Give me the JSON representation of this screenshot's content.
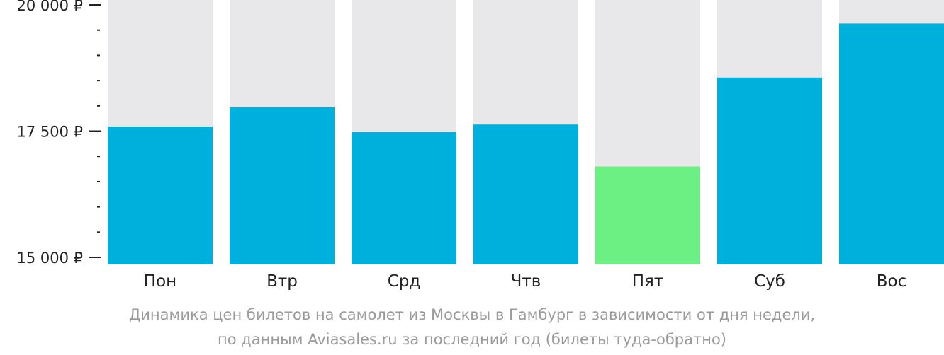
{
  "chart_data": {
    "type": "bar",
    "categories": [
      "Пон",
      "Втр",
      "Срд",
      "Чтв",
      "Пят",
      "Суб",
      "Вос"
    ],
    "values": [
      17590,
      17970,
      17480,
      17630,
      16800,
      18560,
      19630
    ],
    "ylim": [
      15000,
      20000
    ],
    "y_ticks": [
      {
        "value": 20000,
        "label": "20 000 ₽"
      },
      {
        "value": 17500,
        "label": "17 500 ₽"
      },
      {
        "value": 15000,
        "label": "15 000 ₽"
      }
    ],
    "minor_tick_step": 500,
    "highlight_index": 4,
    "grid": false,
    "legend": "none",
    "colors": {
      "bar": "#00b0dc",
      "bar_highlight": "#6cf084",
      "bar_background": "#e8e8ea",
      "axis": "#222222",
      "caption": "#9a9a9a"
    }
  },
  "caption": {
    "line1": "Динамика цен билетов на самолет из Москвы в Гамбург в зависимости от дня недели,",
    "line2": "по данным Aviasales.ru за последний год (билеты туда-обратно)"
  }
}
